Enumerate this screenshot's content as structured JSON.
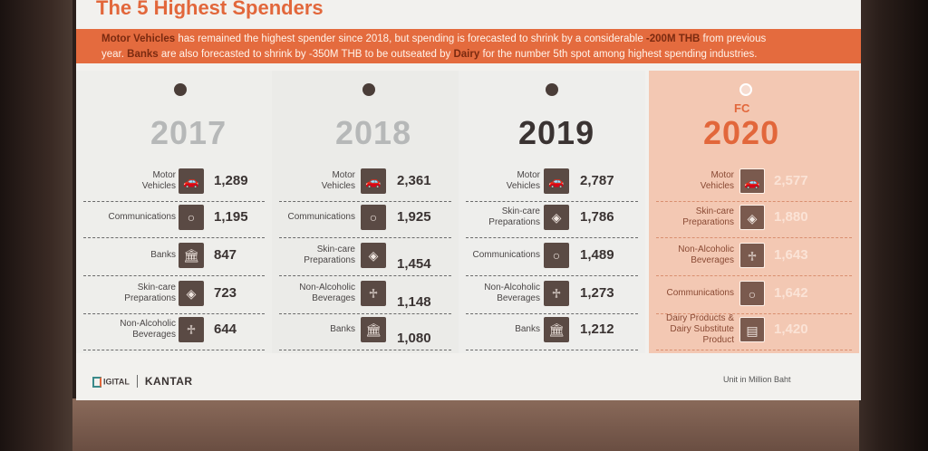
{
  "slide": {
    "title": "The 5 Highest Spenders",
    "banner": {
      "line1_a": "Motor Vehicles",
      "line1_b": " has remained the highest spender since 2018, but spending is forecasted to shrink by a considerable ",
      "line1_c": "-200M THB",
      "line1_d": " from previous",
      "line2_a": "year. ",
      "line2_b": "Banks",
      "line2_c": " are also forecasted to shrink by -350M THB to be outseated by ",
      "line2_d": "Dairy",
      "line2_e": " for the number 5th spot among highest spending industries."
    },
    "fc_label": "FC",
    "columns": [
      {
        "year": "2017",
        "rows": [
          {
            "label": "Motor\nVehicles",
            "icon": "car-icon",
            "value": "1,289"
          },
          {
            "label": "Communications",
            "icon": "circle-icon",
            "value": "1,195"
          },
          {
            "label": "Banks",
            "icon": "bank-icon",
            "value": "847"
          },
          {
            "label": "Skin-care\nPreparations",
            "icon": "shield-icon",
            "value": "723"
          },
          {
            "label": "Non-Alcoholic\nBeverages",
            "icon": "bottle-icon",
            "value": "644"
          }
        ]
      },
      {
        "year": "2018",
        "rows": [
          {
            "label": "Motor\nVehicles",
            "icon": "car-icon",
            "value": "2,361"
          },
          {
            "label": "Communications",
            "icon": "circle-icon",
            "value": "1,925"
          },
          {
            "label": "Skin-care\nPreparations",
            "icon": "shield-icon",
            "value": "1,454"
          },
          {
            "label": "Non-Alcoholic\nBeverages",
            "icon": "bottle-icon",
            "value": "1,148"
          },
          {
            "label": "Banks",
            "icon": "bank-icon",
            "value": "1,080"
          }
        ]
      },
      {
        "year": "2019",
        "rows": [
          {
            "label": "Motor\nVehicles",
            "icon": "car-icon",
            "value": "2,787"
          },
          {
            "label": "Skin-care\nPreparations",
            "icon": "shield-icon",
            "value": "1,786"
          },
          {
            "label": "Communications",
            "icon": "circle-icon",
            "value": "1,489"
          },
          {
            "label": "Non-Alcoholic\nBeverages",
            "icon": "bottle-icon",
            "value": "1,273"
          },
          {
            "label": "Banks",
            "icon": "bank-icon",
            "value": "1,212"
          }
        ]
      },
      {
        "year": "2020",
        "rows": [
          {
            "label": "Motor\nVehicles",
            "icon": "car-icon",
            "value": "2,577"
          },
          {
            "label": "Skin-care\nPreparations",
            "icon": "shield-icon",
            "value": "1,880"
          },
          {
            "label": "Non-Alcoholic\nBeverages",
            "icon": "bottle-icon",
            "value": "1,643"
          },
          {
            "label": "Communications",
            "icon": "circle-icon",
            "value": "1,642"
          },
          {
            "label": "Dairy Products &\nDairy Substitute\nProduct",
            "icon": "carton-icon",
            "value": "1,420"
          }
        ]
      }
    ],
    "footer": {
      "brand1": "IGITAL",
      "brand2": "KANTAR",
      "unit": "Unit in Million Baht"
    },
    "colors": {
      "accent": "#e2673b",
      "forecast_bg": "#f3c8b3"
    }
  }
}
